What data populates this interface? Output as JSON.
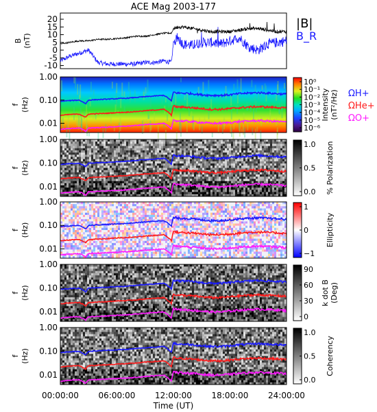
{
  "title": "ACE Mag 2003-177",
  "colors": {
    "bmag": "#000000",
    "br": "#1a1aff",
    "h_plus": "#1a1aff",
    "he_plus": "#ff1a1a",
    "o_plus": "#ff19ff",
    "frame": "#000000"
  },
  "chart_data": [
    {
      "type": "line",
      "panel": "magnetic-field",
      "ylabel": "B",
      "yunit": "(nT)",
      "ylim": [
        -12,
        24
      ],
      "yticks": [
        "20",
        "15",
        "10",
        "5",
        "0",
        "-5",
        "-10"
      ],
      "x_range_hours": [
        0,
        24
      ],
      "series": [
        {
          "name": "|B|",
          "x": [
            0,
            1,
            2,
            3,
            4,
            5,
            6,
            7,
            8,
            9,
            10,
            11,
            11.8,
            12,
            12.5,
            13,
            14,
            15,
            16,
            17,
            18,
            19,
            20,
            21,
            22,
            23,
            24
          ],
          "y": [
            4,
            5,
            6,
            6,
            7,
            7,
            7.5,
            8,
            9,
            9,
            10,
            11,
            11,
            14,
            15,
            15,
            14,
            13,
            12,
            12,
            12,
            13,
            14,
            14,
            13,
            12,
            12
          ]
        },
        {
          "name": "B_R",
          "x": [
            0,
            1,
            2,
            3,
            4,
            5,
            6,
            7,
            8,
            9,
            10,
            11,
            11.8,
            12,
            12.5,
            13,
            14,
            15,
            16,
            17,
            18,
            19,
            20,
            21,
            22,
            23,
            24
          ],
          "y": [
            -7,
            -4,
            -2,
            0,
            -8,
            -9,
            -9,
            -9,
            -9,
            -8,
            -8,
            -7,
            -8,
            5,
            8,
            4,
            3,
            5,
            5,
            4,
            6,
            8,
            2,
            0,
            4,
            5,
            6
          ]
        }
      ],
      "legend": [
        "|B|",
        "B_R"
      ]
    },
    {
      "type": "heatmap",
      "panel": "intensity",
      "ylabel": "f",
      "yunit": "(Hz)",
      "yscale": "log",
      "ylim": [
        0.004,
        1.0
      ],
      "yticks": [
        "1.00",
        "0.10",
        "0.01"
      ],
      "colorbar": {
        "label": "Intensity",
        "unit": "(nT²/Hz)",
        "ticks": [
          "10⁰",
          "10⁻¹",
          "10⁻²",
          "10⁻³",
          "10⁻⁴",
          "10⁻⁵",
          "10⁻⁶"
        ],
        "scale": "rainbow"
      },
      "legend": [
        "ΩH+",
        "ΩHe+",
        "ΩO+"
      ]
    },
    {
      "type": "heatmap",
      "panel": "polarization",
      "ylabel": "f",
      "yunit": "(Hz)",
      "yscale": "log",
      "ylim": [
        0.004,
        1.0
      ],
      "yticks": [
        "1.00",
        "0.10",
        "0.01"
      ],
      "colorbar": {
        "label": "% Polarization",
        "ticks": [
          "1.0",
          "0.5",
          "0.0"
        ],
        "scale": "grey"
      }
    },
    {
      "type": "heatmap",
      "panel": "ellipticity",
      "ylabel": "f",
      "yunit": "(Hz)",
      "yscale": "log",
      "ylim": [
        0.004,
        1.0
      ],
      "yticks": [
        "1.00",
        "0.10",
        "0.01"
      ],
      "colorbar": {
        "label": "Ellipticity",
        "ticks": [
          "1",
          "0",
          "−1"
        ],
        "scale": "blue-white-red"
      }
    },
    {
      "type": "heatmap",
      "panel": "k-dot-b",
      "ylabel": "f",
      "yunit": "(Hz)",
      "yscale": "log",
      "ylim": [
        0.004,
        1.0
      ],
      "yticks": [
        "1.00",
        "0.10",
        "0.01"
      ],
      "colorbar": {
        "label": "k dot B",
        "unit": "(Deg)",
        "ticks": [
          "90",
          "60",
          "30",
          "0"
        ],
        "scale": "grey"
      }
    },
    {
      "type": "heatmap",
      "panel": "coherency",
      "ylabel": "f",
      "yunit": "(Hz)",
      "yscale": "log",
      "ylim": [
        0.004,
        1.0
      ],
      "yticks": [
        "1.00",
        "0.10",
        "0.01"
      ],
      "colorbar": {
        "label": "Coherency",
        "ticks": [
          "1.0",
          "0.5",
          "0.0"
        ],
        "scale": "grey"
      },
      "xlabel": "Time (UT)",
      "xticks": [
        "00:00:00",
        "06:00:00",
        "12:00:00",
        "18:00:00",
        "24:00:00"
      ]
    }
  ],
  "gyrofrequencies": {
    "x_hours": [
      0,
      1,
      2,
      2.7,
      3,
      4,
      5,
      6,
      7,
      8,
      9,
      10,
      11,
      11.8,
      12,
      12.5,
      13,
      14,
      15,
      16,
      17,
      18,
      19,
      20,
      21,
      22,
      23,
      24
    ],
    "H+_hz": [
      0.09,
      0.095,
      0.1,
      0.07,
      0.1,
      0.105,
      0.11,
      0.115,
      0.12,
      0.13,
      0.14,
      0.15,
      0.16,
      0.09,
      0.22,
      0.2,
      0.2,
      0.19,
      0.17,
      0.16,
      0.16,
      0.17,
      0.19,
      0.2,
      0.21,
      0.2,
      0.19,
      0.18
    ],
    "He+_hz": [
      0.022,
      0.024,
      0.025,
      0.018,
      0.025,
      0.026,
      0.027,
      0.029,
      0.03,
      0.032,
      0.035,
      0.037,
      0.04,
      0.022,
      0.055,
      0.05,
      0.05,
      0.047,
      0.043,
      0.04,
      0.04,
      0.043,
      0.047,
      0.05,
      0.052,
      0.05,
      0.048,
      0.045
    ],
    "O+_hz": [
      0.0055,
      0.006,
      0.0063,
      0.0045,
      0.0063,
      0.0065,
      0.0068,
      0.0072,
      0.0075,
      0.008,
      0.0088,
      0.0093,
      0.01,
      0.0055,
      0.014,
      0.0125,
      0.0125,
      0.0118,
      0.0108,
      0.01,
      0.01,
      0.0108,
      0.0118,
      0.0125,
      0.013,
      0.0125,
      0.012,
      0.0113
    ]
  }
}
